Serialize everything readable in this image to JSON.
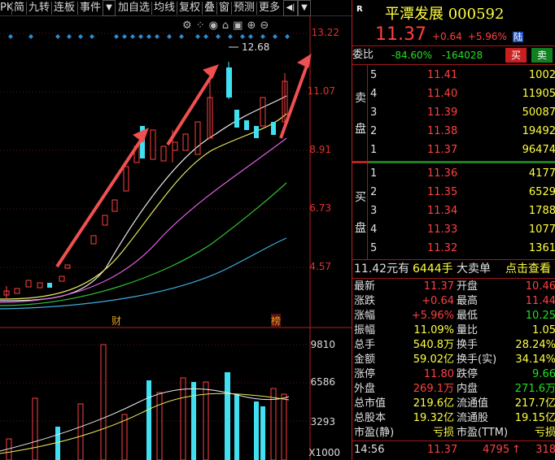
{
  "toolbar": {
    "items": [
      "PK",
      "简",
      "九转",
      "连板",
      "事件",
      "加自选",
      "均线",
      "复权",
      "叠",
      "窗",
      "预测",
      "更多"
    ],
    "dropdown_glyph": "▼",
    "pin_glyph": "◀|"
  },
  "chart": {
    "price_axis": [
      "13.22",
      "11.07",
      "8.91",
      "6.73",
      "4.57"
    ],
    "high_label": "12.68",
    "event_markers": [
      "财",
      "榜"
    ],
    "volume_axis": [
      "9810",
      "6586",
      "3293",
      "X1000"
    ],
    "tool_icons": [
      "settings-icon",
      "dotgrid-icon",
      "eye-icon",
      "lock-icon",
      "box-icon",
      "zoom-in-icon",
      "zoom-out-icon"
    ]
  },
  "stock": {
    "badge": "R",
    "name": "平潭发展",
    "code": "000592",
    "price": "11.37",
    "change": "+0.64",
    "pct": "+5.96%",
    "exchange_tag": "陆",
    "weibi_label": "委比",
    "weibi_pct": "-84.60%",
    "weibi_diff": "-164028",
    "buy_btn": "买",
    "sell_btn": "卖"
  },
  "sell_label": [
    "卖",
    "盘"
  ],
  "buy_label": [
    "买",
    "盘"
  ],
  "asks": [
    {
      "level": "5",
      "price": "11.41",
      "vol": "1002"
    },
    {
      "level": "4",
      "price": "11.40",
      "vol": "11905"
    },
    {
      "level": "3",
      "price": "11.39",
      "vol": "50087"
    },
    {
      "level": "2",
      "price": "11.38",
      "vol": "19492"
    },
    {
      "level": "1",
      "price": "11.37",
      "vol": "96474"
    }
  ],
  "bids": [
    {
      "level": "1",
      "price": "11.36",
      "vol": "4177"
    },
    {
      "level": "2",
      "price": "11.35",
      "vol": "6529"
    },
    {
      "level": "3",
      "price": "11.34",
      "vol": "1788"
    },
    {
      "level": "4",
      "price": "11.33",
      "vol": "1077"
    },
    {
      "level": "5",
      "price": "11.32",
      "vol": "1361"
    }
  ],
  "bigorder": {
    "price": "11.42元有",
    "vol": "6444手",
    "label": "大卖单",
    "link": "点击查看"
  },
  "stats": [
    {
      "l": "最新",
      "v": "11.37",
      "l2": "开盘",
      "v2": "10.46"
    },
    {
      "l": "涨跌",
      "v": "+0.64",
      "l2": "最高",
      "v2": "11.44"
    },
    {
      "l": "涨幅",
      "v": "+5.96%",
      "l2": "最低",
      "v2": "10.25"
    },
    {
      "l": "振幅",
      "v": "11.09%",
      "l2": "量比",
      "v2": "1.05"
    },
    {
      "l": "总手",
      "v": "540.8万",
      "l2": "换手",
      "v2": "28.24%"
    },
    {
      "l": "金额",
      "v": "59.02亿",
      "l2": "换手(实)",
      "v2": "34.14%"
    },
    {
      "l": "涨停",
      "v": "11.80",
      "l2": "跌停",
      "v2": "9.66"
    },
    {
      "l": "外盘",
      "v": "269.1万",
      "l2": "内盘",
      "v2": "271.6万"
    },
    {
      "l": "总市值",
      "v": "219.6亿",
      "l2": "流通值",
      "v2": "217.7亿"
    },
    {
      "l": "总股本",
      "v": "19.32亿",
      "l2": "流通股",
      "v2": "19.15亿"
    },
    {
      "l": "市盈(静)",
      "v": "亏损",
      "l2": "市盈(TTM)",
      "v2": "亏损"
    }
  ],
  "tick": {
    "time": "14:56",
    "price": "11.37",
    "vol": "4795",
    "arrow": "↑",
    "extra": "318"
  }
}
